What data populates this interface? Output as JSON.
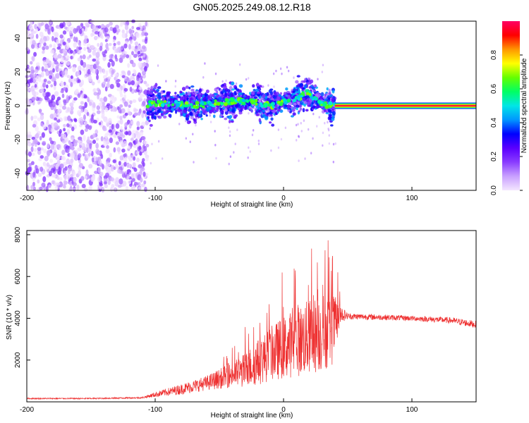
{
  "title": "GN05.2025.249.08.12.R18",
  "chart_data": [
    {
      "type": "heatmap",
      "name": "spectrogram",
      "xlabel": "Height of straight line (km)",
      "ylabel": "Frequency (Hz)",
      "xlim": [
        -200,
        150
      ],
      "ylim": [
        -50,
        50
      ],
      "xticks": [
        -200,
        -100,
        0,
        100
      ],
      "yticks": [
        -40,
        -20,
        0,
        20,
        40
      ],
      "colorbar": {
        "label": "Normalized spectral amplitude",
        "range": [
          0.0,
          1.0
        ],
        "ticks": [
          0.0,
          0.2,
          0.4,
          0.6,
          0.8
        ],
        "colors": [
          "#f4e6ff",
          "#c9a0ff",
          "#8a3cff",
          "#5a00ff",
          "#0000ff",
          "#0096ff",
          "#00e6e6",
          "#00ff64",
          "#64ff00",
          "#ffff00",
          "#ff9600",
          "#ff0000",
          "#ff0064"
        ]
      },
      "segments": [
        {
          "name": "noise",
          "x_range": [
            -200,
            -106
          ],
          "freq_spread": [
            -50,
            50
          ],
          "amplitude_range": [
            0.0,
            0.2
          ]
        },
        {
          "name": "diffuse_signal",
          "x_range": [
            -106,
            40
          ],
          "freq_spread": [
            -12,
            12
          ],
          "amplitude_range": [
            0.1,
            0.45
          ]
        },
        {
          "name": "carrier_line",
          "x_range": [
            40,
            150
          ],
          "frequency": 0,
          "amplitude_range": [
            0.8,
            1.0
          ]
        }
      ],
      "carrier_track": [
        [
          -106,
          1
        ],
        [
          -90,
          1.5
        ],
        [
          -70,
          0
        ],
        [
          -50,
          2
        ],
        [
          -30,
          3
        ],
        [
          -10,
          0
        ],
        [
          0,
          2
        ],
        [
          10,
          4
        ],
        [
          18,
          8
        ],
        [
          25,
          4
        ],
        [
          32,
          1
        ],
        [
          40,
          0
        ],
        [
          150,
          0
        ]
      ]
    },
    {
      "type": "line",
      "name": "snr",
      "xlabel": "Height of straight line (km)",
      "ylabel": "SNR (10 * v/v)",
      "xlim": [
        -200,
        150
      ],
      "ylim": [
        0,
        8200
      ],
      "xticks": [
        -200,
        -100,
        0,
        100
      ],
      "yticks": [
        2000,
        4000,
        6000,
        8000
      ],
      "color": "#ee3030",
      "series": [
        {
          "name": "SNR",
          "envelope": [
            {
              "x": -200,
              "y": 160,
              "spread": 60
            },
            {
              "x": -150,
              "y": 160,
              "spread": 60
            },
            {
              "x": -110,
              "y": 200,
              "spread": 80
            },
            {
              "x": -100,
              "y": 350,
              "spread": 250
            },
            {
              "x": -80,
              "y": 600,
              "spread": 500
            },
            {
              "x": -60,
              "y": 900,
              "spread": 700
            },
            {
              "x": -40,
              "y": 1300,
              "spread": 1200
            },
            {
              "x": -30,
              "y": 1500,
              "spread": 1700
            },
            {
              "x": -20,
              "y": 1900,
              "spread": 2200
            },
            {
              "x": -10,
              "y": 2300,
              "spread": 2600
            },
            {
              "x": 0,
              "y": 2600,
              "spread": 3000
            },
            {
              "x": 15,
              "y": 3000,
              "spread": 3500
            },
            {
              "x": 30,
              "y": 3300,
              "spread": 3800
            },
            {
              "x": 38,
              "y": 3500,
              "spread": 3500
            },
            {
              "x": 45,
              "y": 4200,
              "spread": 800
            },
            {
              "x": 50,
              "y": 4100,
              "spread": 300
            },
            {
              "x": 100,
              "y": 4000,
              "spread": 250
            },
            {
              "x": 130,
              "y": 3900,
              "spread": 300
            },
            {
              "x": 150,
              "y": 3700,
              "spread": 350
            }
          ]
        }
      ]
    }
  ]
}
